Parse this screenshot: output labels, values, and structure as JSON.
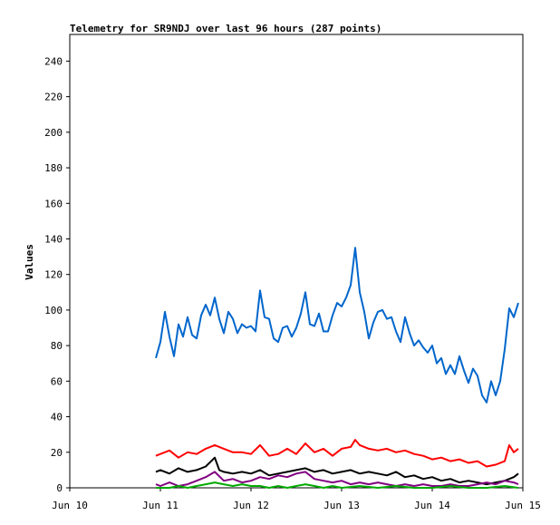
{
  "chart_data": {
    "type": "line",
    "title": "Telemetry for SR9NDJ over last 96 hours (287 points)",
    "ylabel": "Values",
    "xlabel": "",
    "ylim": [
      0,
      255
    ],
    "xlim": [
      0,
      5
    ],
    "y_ticks": [
      0,
      20,
      40,
      60,
      80,
      100,
      120,
      140,
      160,
      180,
      200,
      220,
      240
    ],
    "x_ticks": [
      {
        "x": 0,
        "label": "Jun 10"
      },
      {
        "x": 1,
        "label": "Jun 11"
      },
      {
        "x": 2,
        "label": "Jun 12"
      },
      {
        "x": 3,
        "label": "Jun 13"
      },
      {
        "x": 4,
        "label": "Jun 14"
      },
      {
        "x": 5,
        "label": "Jun 15"
      }
    ],
    "grid": false,
    "series": [
      {
        "color": "#0066cc",
        "points": [
          [
            0.95,
            73
          ],
          [
            1.0,
            82
          ],
          [
            1.05,
            99
          ],
          [
            1.1,
            85
          ],
          [
            1.15,
            74
          ],
          [
            1.2,
            92
          ],
          [
            1.25,
            85
          ],
          [
            1.3,
            96
          ],
          [
            1.35,
            86
          ],
          [
            1.4,
            84
          ],
          [
            1.45,
            97
          ],
          [
            1.5,
            103
          ],
          [
            1.55,
            97
          ],
          [
            1.6,
            107
          ],
          [
            1.65,
            95
          ],
          [
            1.7,
            87
          ],
          [
            1.75,
            99
          ],
          [
            1.8,
            95
          ],
          [
            1.85,
            87
          ],
          [
            1.9,
            92
          ],
          [
            1.95,
            90
          ],
          [
            2.0,
            91
          ],
          [
            2.05,
            88
          ],
          [
            2.1,
            111
          ],
          [
            2.15,
            96
          ],
          [
            2.2,
            95
          ],
          [
            2.25,
            84
          ],
          [
            2.3,
            82
          ],
          [
            2.35,
            90
          ],
          [
            2.4,
            91
          ],
          [
            2.45,
            85
          ],
          [
            2.5,
            90
          ],
          [
            2.55,
            98
          ],
          [
            2.6,
            110
          ],
          [
            2.65,
            92
          ],
          [
            2.7,
            91
          ],
          [
            2.75,
            98
          ],
          [
            2.8,
            88
          ],
          [
            2.85,
            88
          ],
          [
            2.9,
            97
          ],
          [
            2.95,
            104
          ],
          [
            3.0,
            102
          ],
          [
            3.05,
            107
          ],
          [
            3.1,
            114
          ],
          [
            3.15,
            135
          ],
          [
            3.2,
            110
          ],
          [
            3.25,
            99
          ],
          [
            3.3,
            84
          ],
          [
            3.35,
            93
          ],
          [
            3.4,
            99
          ],
          [
            3.45,
            100
          ],
          [
            3.5,
            95
          ],
          [
            3.55,
            96
          ],
          [
            3.6,
            88
          ],
          [
            3.65,
            82
          ],
          [
            3.7,
            96
          ],
          [
            3.75,
            87
          ],
          [
            3.8,
            80
          ],
          [
            3.85,
            83
          ],
          [
            3.9,
            79
          ],
          [
            3.95,
            76
          ],
          [
            4.0,
            80
          ],
          [
            4.05,
            70
          ],
          [
            4.1,
            73
          ],
          [
            4.15,
            64
          ],
          [
            4.2,
            69
          ],
          [
            4.25,
            64
          ],
          [
            4.3,
            74
          ],
          [
            4.35,
            66
          ],
          [
            4.4,
            59
          ],
          [
            4.45,
            67
          ],
          [
            4.5,
            63
          ],
          [
            4.55,
            52
          ],
          [
            4.6,
            48
          ],
          [
            4.65,
            60
          ],
          [
            4.7,
            52
          ],
          [
            4.75,
            60
          ],
          [
            4.8,
            78
          ],
          [
            4.85,
            101
          ],
          [
            4.9,
            96
          ],
          [
            4.95,
            104
          ]
        ]
      },
      {
        "color": "#ff0000",
        "points": [
          [
            0.95,
            18
          ],
          [
            1.0,
            19
          ],
          [
            1.1,
            21
          ],
          [
            1.2,
            17
          ],
          [
            1.3,
            20
          ],
          [
            1.4,
            19
          ],
          [
            1.5,
            22
          ],
          [
            1.6,
            24
          ],
          [
            1.7,
            22
          ],
          [
            1.8,
            20
          ],
          [
            1.9,
            20
          ],
          [
            2.0,
            19
          ],
          [
            2.1,
            24
          ],
          [
            2.2,
            18
          ],
          [
            2.3,
            19
          ],
          [
            2.4,
            22
          ],
          [
            2.5,
            19
          ],
          [
            2.6,
            25
          ],
          [
            2.7,
            20
          ],
          [
            2.8,
            22
          ],
          [
            2.9,
            18
          ],
          [
            3.0,
            22
          ],
          [
            3.1,
            23
          ],
          [
            3.15,
            27
          ],
          [
            3.2,
            24
          ],
          [
            3.3,
            22
          ],
          [
            3.4,
            21
          ],
          [
            3.5,
            22
          ],
          [
            3.6,
            20
          ],
          [
            3.7,
            21
          ],
          [
            3.8,
            19
          ],
          [
            3.9,
            18
          ],
          [
            4.0,
            16
          ],
          [
            4.1,
            17
          ],
          [
            4.2,
            15
          ],
          [
            4.3,
            16
          ],
          [
            4.4,
            14
          ],
          [
            4.5,
            15
          ],
          [
            4.6,
            12
          ],
          [
            4.7,
            13
          ],
          [
            4.8,
            15
          ],
          [
            4.85,
            24
          ],
          [
            4.9,
            20
          ],
          [
            4.95,
            22
          ]
        ]
      },
      {
        "color": "#000000",
        "points": [
          [
            0.95,
            9
          ],
          [
            1.0,
            10
          ],
          [
            1.1,
            8
          ],
          [
            1.2,
            11
          ],
          [
            1.3,
            9
          ],
          [
            1.4,
            10
          ],
          [
            1.5,
            12
          ],
          [
            1.6,
            17
          ],
          [
            1.65,
            10
          ],
          [
            1.7,
            9
          ],
          [
            1.8,
            8
          ],
          [
            1.9,
            9
          ],
          [
            2.0,
            8
          ],
          [
            2.1,
            10
          ],
          [
            2.2,
            7
          ],
          [
            2.3,
            8
          ],
          [
            2.4,
            9
          ],
          [
            2.5,
            10
          ],
          [
            2.6,
            11
          ],
          [
            2.7,
            9
          ],
          [
            2.8,
            10
          ],
          [
            2.9,
            8
          ],
          [
            3.0,
            9
          ],
          [
            3.1,
            10
          ],
          [
            3.2,
            8
          ],
          [
            3.3,
            9
          ],
          [
            3.4,
            8
          ],
          [
            3.5,
            7
          ],
          [
            3.6,
            9
          ],
          [
            3.7,
            6
          ],
          [
            3.8,
            7
          ],
          [
            3.9,
            5
          ],
          [
            4.0,
            6
          ],
          [
            4.1,
            4
          ],
          [
            4.2,
            5
          ],
          [
            4.3,
            3
          ],
          [
            4.4,
            4
          ],
          [
            4.5,
            3
          ],
          [
            4.6,
            2
          ],
          [
            4.7,
            3
          ],
          [
            4.8,
            4
          ],
          [
            4.9,
            6
          ],
          [
            4.95,
            8
          ]
        ]
      },
      {
        "color": "#800080",
        "points": [
          [
            0.95,
            2
          ],
          [
            1.0,
            1
          ],
          [
            1.1,
            3
          ],
          [
            1.2,
            1
          ],
          [
            1.3,
            2
          ],
          [
            1.4,
            4
          ],
          [
            1.5,
            6
          ],
          [
            1.6,
            9
          ],
          [
            1.7,
            4
          ],
          [
            1.8,
            5
          ],
          [
            1.9,
            3
          ],
          [
            2.0,
            4
          ],
          [
            2.1,
            6
          ],
          [
            2.2,
            5
          ],
          [
            2.3,
            7
          ],
          [
            2.4,
            6
          ],
          [
            2.5,
            8
          ],
          [
            2.6,
            9
          ],
          [
            2.7,
            5
          ],
          [
            2.8,
            4
          ],
          [
            2.9,
            3
          ],
          [
            3.0,
            4
          ],
          [
            3.1,
            2
          ],
          [
            3.2,
            3
          ],
          [
            3.3,
            2
          ],
          [
            3.4,
            3
          ],
          [
            3.5,
            2
          ],
          [
            3.6,
            1
          ],
          [
            3.7,
            2
          ],
          [
            3.8,
            1
          ],
          [
            3.9,
            2
          ],
          [
            4.0,
            1
          ],
          [
            4.1,
            1
          ],
          [
            4.2,
            2
          ],
          [
            4.3,
            1
          ],
          [
            4.4,
            1
          ],
          [
            4.5,
            2
          ],
          [
            4.6,
            3
          ],
          [
            4.7,
            2
          ],
          [
            4.8,
            4
          ],
          [
            4.9,
            3
          ],
          [
            4.95,
            2
          ]
        ]
      },
      {
        "color": "#00aa00",
        "points": [
          [
            0.95,
            0
          ],
          [
            1.1,
            0
          ],
          [
            1.2,
            1
          ],
          [
            1.3,
            0
          ],
          [
            1.4,
            1
          ],
          [
            1.5,
            2
          ],
          [
            1.6,
            3
          ],
          [
            1.7,
            2
          ],
          [
            1.8,
            1
          ],
          [
            1.9,
            2
          ],
          [
            2.0,
            1
          ],
          [
            2.1,
            1
          ],
          [
            2.2,
            0
          ],
          [
            2.3,
            1
          ],
          [
            2.4,
            0
          ],
          [
            2.5,
            1
          ],
          [
            2.6,
            2
          ],
          [
            2.7,
            1
          ],
          [
            2.8,
            0
          ],
          [
            2.9,
            1
          ],
          [
            3.0,
            0
          ],
          [
            3.2,
            1
          ],
          [
            3.4,
            0
          ],
          [
            3.6,
            1
          ],
          [
            3.8,
            0
          ],
          [
            4.0,
            0
          ],
          [
            4.2,
            1
          ],
          [
            4.4,
            0
          ],
          [
            4.6,
            0
          ],
          [
            4.8,
            1
          ],
          [
            4.95,
            0
          ]
        ]
      }
    ]
  }
}
